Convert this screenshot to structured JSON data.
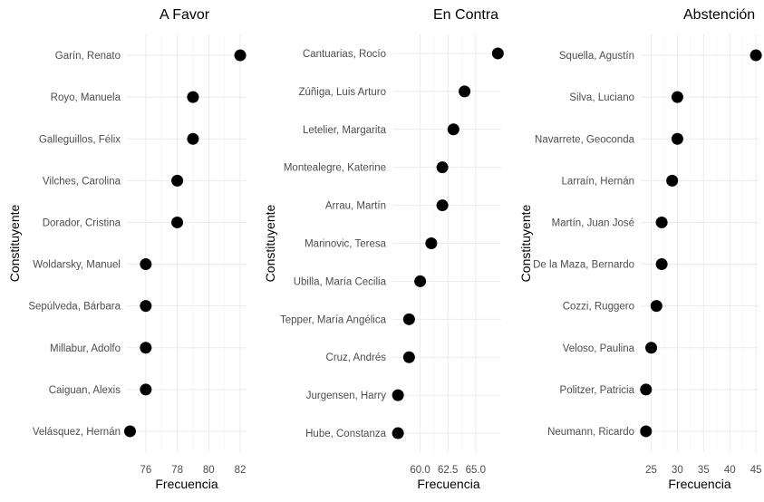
{
  "chart_data": [
    {
      "type": "scatter",
      "title": "A Favor",
      "xlabel": "Frecuencia",
      "ylabel": "Constituyente",
      "xlim": [
        74.8,
        82.4
      ],
      "xticks": [
        76,
        78,
        80,
        82
      ],
      "xtick_labels": [
        "76",
        "78",
        "80",
        "82"
      ],
      "grid": true,
      "categories": [
        "Garín, Renato",
        "Royo, Manuela",
        "Galleguillos, Félix",
        "Vilches, Carolina",
        "Dorador, Cristina",
        "Woldarsky, Manuel",
        "Sepúlveda, Bárbara",
        "Millabur, Adolfo",
        "Caiguan, Alexis",
        "Velásquez, Hernán"
      ],
      "values": [
        82,
        79,
        79,
        78,
        78,
        76,
        76,
        76,
        76,
        75
      ]
    },
    {
      "type": "scatter",
      "title": "En Contra",
      "xlabel": "Frecuencia",
      "ylabel": "Constituyente",
      "xlim": [
        57.5,
        67.3
      ],
      "xticks": [
        60,
        62.5,
        65
      ],
      "xtick_labels": [
        "60.0",
        "62.5",
        "65.0"
      ],
      "grid": true,
      "categories": [
        "Cantuarias, Rocío",
        "Zúñiga, Luis Arturo",
        "Letelier, Margarita",
        "Montealegre, Katerine",
        "Arrau, Martín",
        "Marinovic, Teresa",
        "Ubilla, María Cecilia",
        "Tepper, María Angélica",
        "Cruz, Andrés",
        "Jurgensen, Harry",
        "Hube, Constanza"
      ],
      "values": [
        67,
        64,
        63,
        62,
        62,
        61,
        60,
        59,
        59,
        58,
        58
      ]
    },
    {
      "type": "scatter",
      "title": "Abstención",
      "xlabel": "Frecuencia",
      "ylabel": "Constituyente",
      "xlim": [
        23,
        45.5
      ],
      "xticks": [
        25,
        30,
        35,
        40,
        45
      ],
      "xtick_labels": [
        "25",
        "30",
        "35",
        "40",
        "45"
      ],
      "grid": true,
      "categories": [
        "Squella, Agustín",
        "Silva, Luciano",
        "Navarrete, Geoconda",
        "Larraín, Hernán",
        "Martín, Juan José",
        "De la Maza, Bernardo",
        "Cozzi, Ruggero",
        "Veloso, Paulina",
        "Politzer, Patricia",
        "Neumann, Ricardo"
      ],
      "values": [
        45,
        30,
        30,
        29,
        27,
        27,
        26,
        25,
        24,
        24
      ]
    }
  ]
}
